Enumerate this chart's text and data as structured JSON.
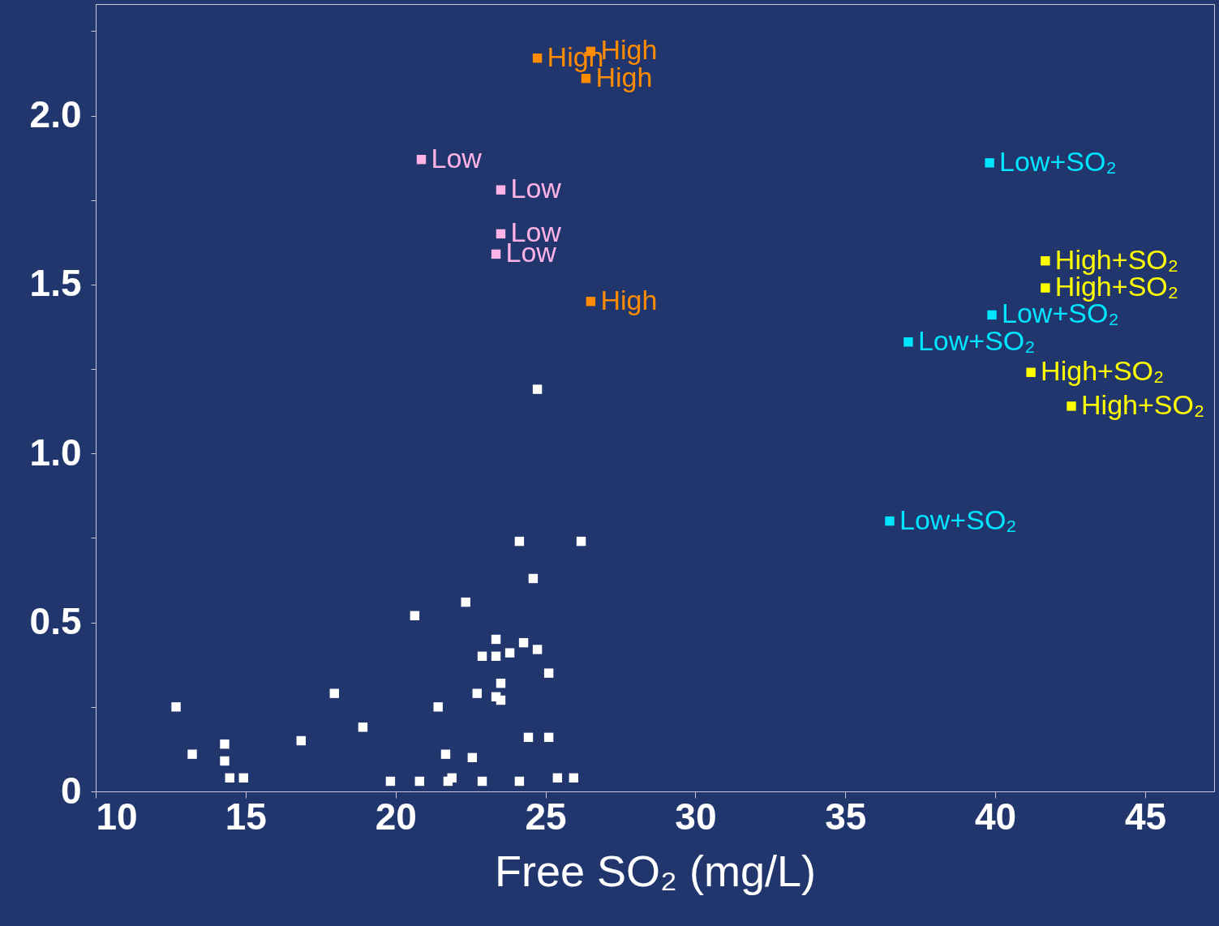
{
  "chart_data": {
    "type": "scatter",
    "xlabel": "Free SO₂ (mg/L)",
    "xlim": [
      10,
      47.3
    ],
    "ylim": [
      0,
      2.33
    ],
    "xticks": [
      10,
      15,
      20,
      25,
      30,
      35,
      40,
      45
    ],
    "yticks": [
      {
        "value": 0,
        "label": "0"
      },
      {
        "value": 0.25,
        "label": null
      },
      {
        "value": 0.5,
        "label": "0.5"
      },
      {
        "value": 0.75,
        "label": null
      },
      {
        "value": 1,
        "label": "1.0"
      },
      {
        "value": 1.25,
        "label": null
      },
      {
        "value": 1.5,
        "label": "1.5"
      },
      {
        "value": 1.75,
        "label": null
      },
      {
        "value": 2,
        "label": "2.0"
      },
      {
        "value": 2.25,
        "label": null
      }
    ],
    "grid": false,
    "marker": "square",
    "series": [
      {
        "color": "#ffffff",
        "x": [
          12.68,
          13.22,
          14.3,
          14.3,
          14.47,
          14.93,
          16.85,
          17.96,
          18.91,
          19.83,
          20.64,
          20.8,
          21.42,
          21.67,
          21.75,
          21.88,
          22.34,
          22.56,
          22.72,
          22.89,
          22.89,
          23.35,
          23.35,
          23.35,
          23.51,
          23.51,
          23.81,
          24.13,
          24.13,
          24.27,
          24.43,
          24.59,
          24.73,
          24.73,
          25.11,
          25.11,
          25.4,
          25.94,
          26.19
        ],
        "values": [
          0.25,
          0.11,
          0.14,
          0.09,
          0.04,
          0.04,
          0.15,
          0.29,
          0.19,
          0.03,
          0.52,
          0.03,
          0.25,
          0.11,
          0.03,
          0.04,
          0.56,
          0.1,
          0.29,
          0.4,
          0.03,
          0.45,
          0.4,
          0.28,
          0.32,
          0.27,
          0.41,
          0.74,
          0.03,
          0.44,
          0.16,
          0.63,
          0.42,
          1.19,
          0.35,
          0.16,
          0.04,
          0.04,
          0.74
        ]
      },
      {
        "name": "High",
        "color": "#ff8c00",
        "x": [
          24.73,
          26.51,
          26.35,
          26.51
        ],
        "values": [
          2.17,
          2.19,
          2.11,
          1.45
        ]
      },
      {
        "name": "Low",
        "color": "#ffb3e6",
        "x": [
          20.86,
          23.51,
          23.51,
          23.35
        ],
        "values": [
          1.87,
          1.78,
          1.65,
          1.59
        ]
      },
      {
        "name": "Low+SO₂",
        "color": "#00e5ff",
        "x": [
          39.81,
          39.89,
          37.1,
          36.48
        ],
        "values": [
          1.86,
          1.41,
          1.33,
          0.8
        ]
      },
      {
        "name": "High+SO₂",
        "color": "#ffff00",
        "x": [
          41.67,
          41.67,
          41.19,
          42.54
        ],
        "values": [
          1.57,
          1.49,
          1.24,
          1.14
        ]
      }
    ]
  }
}
